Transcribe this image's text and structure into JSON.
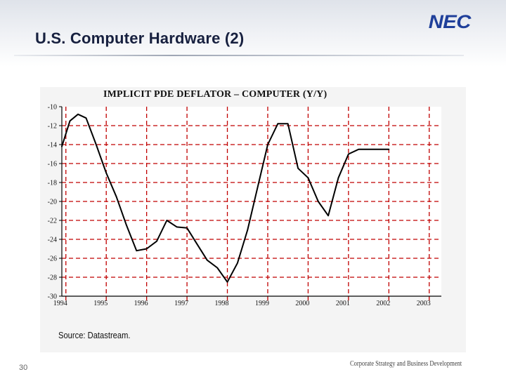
{
  "slide": {
    "title": "U.S. Computer Hardware (2)",
    "logo": "NEC",
    "page_number": "30",
    "footer": "Corporate Strategy and Business Development",
    "source": "Source: Datastream."
  },
  "colors": {
    "title": "#17203f",
    "logo": "#1f3f9a",
    "gridline": "#c00000",
    "series": "#000000"
  },
  "chart_data": {
    "type": "line",
    "title": "IMPLICIT PDE DEFLATOR – COMPUTER (Y/Y)",
    "xlabel": "",
    "ylabel": "",
    "ylim": [
      -30,
      -10
    ],
    "xlim": [
      1993.9,
      2003.3
    ],
    "grid": true,
    "grid_style": "dashed",
    "legend": "none",
    "x_ticks": [
      {
        "value": 1994,
        "label": "1994"
      },
      {
        "value": 1995,
        "label": "1995"
      },
      {
        "value": 1996,
        "label": "1996"
      },
      {
        "value": 1997,
        "label": "1997"
      },
      {
        "value": 1998,
        "label": "1998"
      },
      {
        "value": 1999,
        "label": "1999"
      },
      {
        "value": 2000,
        "label": "2000"
      },
      {
        "value": 2001,
        "label": "2001"
      },
      {
        "value": 2002,
        "label": "2002"
      },
      {
        "value": 2003,
        "label": "2003"
      }
    ],
    "y_ticks": [
      {
        "value": -10,
        "label": "-10"
      },
      {
        "value": -12,
        "label": "-12"
      },
      {
        "value": -14,
        "label": "-14"
      },
      {
        "value": -16,
        "label": "-16"
      },
      {
        "value": -18,
        "label": "-18"
      },
      {
        "value": -20,
        "label": "-20"
      },
      {
        "value": -22,
        "label": "-22"
      },
      {
        "value": -24,
        "label": "-24"
      },
      {
        "value": -26,
        "label": "-26"
      },
      {
        "value": -28,
        "label": "-28"
      },
      {
        "value": -30,
        "label": "-30"
      }
    ],
    "series": [
      {
        "x": [
          1993.9,
          1994.1,
          1994.3,
          1994.5,
          1994.75,
          1995.0,
          1995.25,
          1995.5,
          1995.75,
          1996.0,
          1996.25,
          1996.5,
          1996.75,
          1997.0,
          1997.25,
          1997.5,
          1997.75,
          1998.0,
          1998.25,
          1998.5,
          1998.75,
          1999.0,
          1999.25,
          1999.5,
          1999.75,
          2000.0,
          2000.25,
          2000.5,
          2000.75,
          2001.0,
          2001.25,
          2001.5,
          2001.75,
          2002.0,
          2002.2
        ],
        "y": [
          -14.2,
          -11.5,
          -10.8,
          -11.2,
          -14.0,
          -17.0,
          -19.5,
          -22.5,
          -25.2,
          -25.0,
          -24.2,
          -22.0,
          -22.7,
          -22.8,
          -24.5,
          -26.2,
          -27.0,
          -28.5,
          -26.5,
          -23.0,
          -18.5,
          -14.0,
          -11.8,
          -11.8,
          -16.5,
          -17.5,
          -20.0,
          -21.5,
          -17.5,
          -15.0,
          -14.5,
          -14.5,
          -14.5,
          -14.5,
          -14.5
        ]
      }
    ]
  }
}
